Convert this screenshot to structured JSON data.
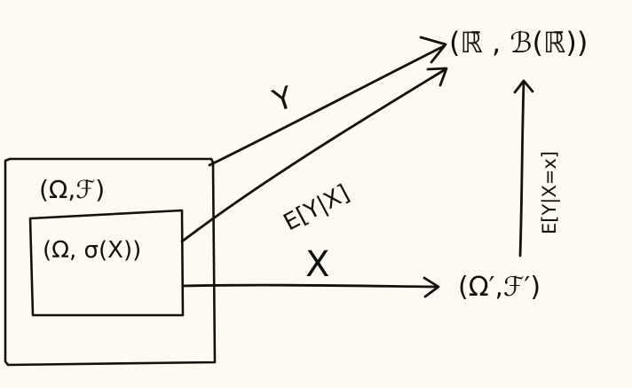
{
  "diagram": {
    "outer_space": "(Ω,ℱ)",
    "inner_space": "(Ω, σ(X))",
    "target_space": "(ℝ̄ , ℬ(ℝ̄))",
    "codomain_space": "(Ω′,ℱ′)",
    "arrow_y_label": "Y",
    "arrow_cond_label": "E[Y|X]",
    "arrow_x_label": "X",
    "arrow_up_label": "E[Y|X=x]"
  },
  "colors": {
    "background": "#fdfbf1",
    "ink": "#111111"
  }
}
